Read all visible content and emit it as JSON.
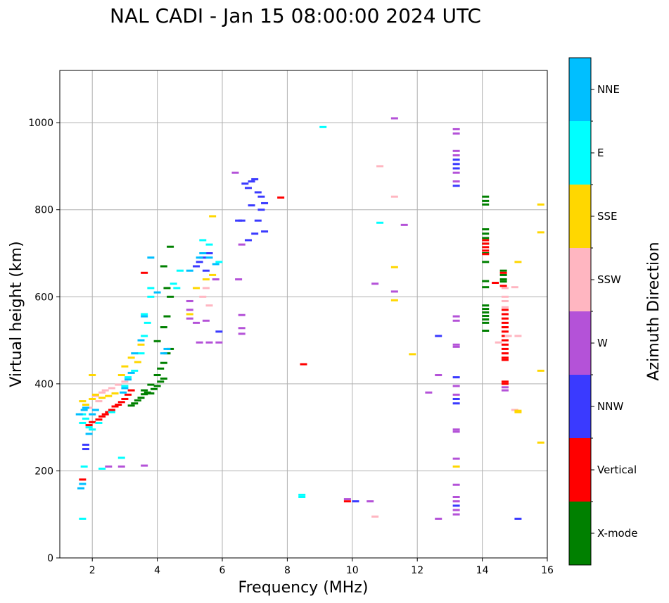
{
  "chart_data": {
    "type": "scatter",
    "title": "NAL CADI - Jan 15 08:00:00 2024 UTC",
    "xlabel": "Frequency (MHz)",
    "ylabel": "Virtual height (km)",
    "xlim": [
      1,
      16
    ],
    "ylim": [
      0,
      1120
    ],
    "xticks": [
      "2",
      "4",
      "6",
      "8",
      "10",
      "12",
      "14",
      "16"
    ],
    "yticks": [
      "0",
      "200",
      "400",
      "600",
      "800",
      "1000"
    ],
    "grid": true,
    "colorbar": {
      "label": "Azimuth Direction",
      "categories": [
        {
          "name": "X-mode",
          "color": "#008000"
        },
        {
          "name": "Vertical",
          "color": "#ff0000"
        },
        {
          "name": "NNW",
          "color": "#3a3aff"
        },
        {
          "name": "W",
          "color": "#b452d8"
        },
        {
          "name": "SSW",
          "color": "#ffb6c1"
        },
        {
          "name": "SSE",
          "color": "#ffd700"
        },
        {
          "name": "E",
          "color": "#00ffff"
        },
        {
          "name": "NNE",
          "color": "#00bfff"
        }
      ]
    },
    "series": [
      {
        "name": "X-mode",
        "points": [
          [
            14.1,
            830
          ],
          [
            14.1,
            820
          ],
          [
            14.1,
            812
          ],
          [
            14.1,
            755
          ],
          [
            14.1,
            745
          ],
          [
            14.1,
            735
          ],
          [
            14.1,
            722
          ],
          [
            14.1,
            700
          ],
          [
            14.1,
            680
          ],
          [
            14.1,
            636
          ],
          [
            14.1,
            622
          ],
          [
            14.1,
            580
          ],
          [
            14.1,
            572
          ],
          [
            14.1,
            564
          ],
          [
            14.1,
            556
          ],
          [
            14.1,
            548
          ],
          [
            14.1,
            540
          ],
          [
            14.1,
            522
          ],
          [
            14.65,
            660
          ],
          [
            14.65,
            650
          ],
          [
            14.65,
            640
          ],
          [
            14.65,
            635
          ],
          [
            3.5,
            368
          ],
          [
            3.6,
            376
          ],
          [
            3.7,
            380
          ],
          [
            3.8,
            378
          ],
          [
            3.9,
            388
          ],
          [
            4.0,
            395
          ],
          [
            4.1,
            405
          ],
          [
            4.2,
            412
          ],
          [
            3.3,
            355
          ],
          [
            3.4,
            362
          ],
          [
            3.2,
            350
          ],
          [
            3.6,
            385
          ],
          [
            3.8,
            398
          ],
          [
            4.0,
            420
          ],
          [
            4.1,
            435
          ],
          [
            4.2,
            448
          ],
          [
            4.3,
            470
          ],
          [
            4.4,
            480
          ],
          [
            4.0,
            498
          ],
          [
            4.2,
            530
          ],
          [
            4.3,
            555
          ],
          [
            4.4,
            600
          ],
          [
            4.3,
            620
          ],
          [
            4.2,
            670
          ],
          [
            4.4,
            715
          ]
        ]
      },
      {
        "name": "Vertical",
        "points": [
          [
            14.7,
            570
          ],
          [
            14.7,
            560
          ],
          [
            14.7,
            550
          ],
          [
            14.7,
            540
          ],
          [
            14.7,
            530
          ],
          [
            14.7,
            520
          ],
          [
            14.7,
            510
          ],
          [
            14.7,
            500
          ],
          [
            14.7,
            490
          ],
          [
            14.7,
            480
          ],
          [
            14.7,
            470
          ],
          [
            14.7,
            460
          ],
          [
            14.7,
            455
          ],
          [
            14.1,
            730
          ],
          [
            14.1,
            722
          ],
          [
            14.1,
            714
          ],
          [
            14.1,
            706
          ],
          [
            14.1,
            698
          ],
          [
            14.4,
            632
          ],
          [
            14.65,
            655
          ],
          [
            14.65,
            625
          ],
          [
            14.7,
            405
          ],
          [
            14.7,
            400
          ],
          [
            1.9,
            305
          ],
          [
            2.0,
            312
          ],
          [
            2.2,
            318
          ],
          [
            2.3,
            325
          ],
          [
            2.4,
            330
          ],
          [
            2.5,
            335
          ],
          [
            2.6,
            340
          ],
          [
            2.7,
            348
          ],
          [
            2.8,
            352
          ],
          [
            2.9,
            358
          ],
          [
            3.0,
            365
          ],
          [
            3.1,
            375
          ],
          [
            3.2,
            385
          ],
          [
            1.7,
            180
          ],
          [
            8.5,
            445
          ],
          [
            9.85,
            130
          ],
          [
            7.8,
            828
          ],
          [
            3.6,
            655
          ]
        ]
      },
      {
        "name": "NNW",
        "points": [
          [
            13.2,
            915
          ],
          [
            13.2,
            905
          ],
          [
            13.2,
            895
          ],
          [
            13.2,
            855
          ],
          [
            13.2,
            415
          ],
          [
            13.2,
            365
          ],
          [
            13.2,
            355
          ],
          [
            13.2,
            120
          ],
          [
            12.65,
            510
          ],
          [
            15.1,
            90
          ],
          [
            10.1,
            130
          ],
          [
            6.6,
            775
          ],
          [
            6.7,
            860
          ],
          [
            6.8,
            850
          ],
          [
            6.9,
            865
          ],
          [
            7.0,
            870
          ],
          [
            7.1,
            840
          ],
          [
            7.2,
            800
          ],
          [
            6.8,
            730
          ],
          [
            7.0,
            745
          ],
          [
            6.5,
            775
          ],
          [
            7.3,
            750
          ],
          [
            7.1,
            775
          ],
          [
            6.9,
            810
          ],
          [
            7.3,
            815
          ],
          [
            7.2,
            830
          ],
          [
            5.3,
            680
          ],
          [
            5.4,
            690
          ],
          [
            5.5,
            660
          ],
          [
            5.2,
            670
          ],
          [
            5.9,
            520
          ],
          [
            5.6,
            700
          ],
          [
            1.8,
            260
          ],
          [
            1.8,
            250
          ]
        ]
      },
      {
        "name": "W",
        "points": [
          [
            13.2,
            985
          ],
          [
            13.2,
            975
          ],
          [
            13.2,
            935
          ],
          [
            13.2,
            925
          ],
          [
            13.2,
            885
          ],
          [
            13.2,
            865
          ],
          [
            13.2,
            555
          ],
          [
            13.2,
            545
          ],
          [
            13.2,
            490
          ],
          [
            13.2,
            485
          ],
          [
            13.2,
            395
          ],
          [
            13.2,
            375
          ],
          [
            13.2,
            295
          ],
          [
            13.2,
            290
          ],
          [
            13.2,
            228
          ],
          [
            13.2,
            168
          ],
          [
            13.2,
            140
          ],
          [
            13.2,
            130
          ],
          [
            13.2,
            110
          ],
          [
            13.2,
            100
          ],
          [
            12.65,
            420
          ],
          [
            12.65,
            90
          ],
          [
            12.35,
            380
          ],
          [
            14.7,
            392
          ],
          [
            14.7,
            385
          ],
          [
            11.3,
            1010
          ],
          [
            11.3,
            612
          ],
          [
            11.6,
            765
          ],
          [
            10.7,
            630
          ],
          [
            10.55,
            130
          ],
          [
            9.85,
            135
          ],
          [
            6.4,
            885
          ],
          [
            6.6,
            720
          ],
          [
            6.5,
            640
          ],
          [
            6.6,
            558
          ],
          [
            6.6,
            528
          ],
          [
            6.6,
            515
          ],
          [
            5.0,
            590
          ],
          [
            5.0,
            570
          ],
          [
            5.0,
            550
          ],
          [
            5.2,
            540
          ],
          [
            5.5,
            545
          ],
          [
            5.3,
            495
          ],
          [
            5.6,
            495
          ],
          [
            5.9,
            495
          ],
          [
            5.8,
            640
          ],
          [
            3.6,
            212
          ],
          [
            2.9,
            210
          ],
          [
            2.5,
            210
          ]
        ]
      },
      {
        "name": "SSW",
        "points": [
          [
            14.7,
            620
          ],
          [
            14.7,
            600
          ],
          [
            14.7,
            590
          ],
          [
            14.7,
            576
          ],
          [
            14.8,
            510
          ],
          [
            14.5,
            495
          ],
          [
            15.0,
            622
          ],
          [
            15.1,
            510
          ],
          [
            10.85,
            900
          ],
          [
            11.3,
            830
          ],
          [
            10.7,
            95
          ],
          [
            15.0,
            340
          ],
          [
            2.3,
            380
          ],
          [
            2.4,
            385
          ],
          [
            2.6,
            390
          ],
          [
            2.8,
            398
          ],
          [
            3.0,
            405
          ],
          [
            1.9,
            345
          ],
          [
            2.1,
            372
          ],
          [
            2.2,
            360
          ],
          [
            5.4,
            600
          ],
          [
            5.6,
            580
          ],
          [
            5.5,
            620
          ]
        ]
      },
      {
        "name": "SSE",
        "points": [
          [
            15.8,
            812
          ],
          [
            15.8,
            748
          ],
          [
            15.8,
            430
          ],
          [
            15.8,
            265
          ],
          [
            15.1,
            680
          ],
          [
            15.1,
            338
          ],
          [
            15.1,
            335
          ],
          [
            13.2,
            210
          ],
          [
            11.3,
            668
          ],
          [
            11.3,
            592
          ],
          [
            11.85,
            468
          ],
          [
            1.7,
            360
          ],
          [
            1.8,
            352
          ],
          [
            2.0,
            365
          ],
          [
            2.1,
            375
          ],
          [
            2.3,
            368
          ],
          [
            2.5,
            372
          ],
          [
            2.7,
            378
          ],
          [
            2.9,
            420
          ],
          [
            3.0,
            440
          ],
          [
            3.2,
            460
          ],
          [
            3.4,
            450
          ],
          [
            3.5,
            490
          ],
          [
            5.0,
            560
          ],
          [
            5.2,
            620
          ],
          [
            5.7,
            650
          ],
          [
            5.7,
            785
          ],
          [
            5.5,
            640
          ],
          [
            2.0,
            420
          ]
        ]
      },
      {
        "name": "E",
        "points": [
          [
            9.1,
            990
          ],
          [
            10.85,
            770
          ],
          [
            8.45,
            145
          ],
          [
            8.45,
            140
          ],
          [
            1.7,
            330
          ],
          [
            1.8,
            320
          ],
          [
            1.7,
            310
          ],
          [
            1.9,
            300
          ],
          [
            2.0,
            295
          ],
          [
            2.2,
            310
          ],
          [
            2.6,
            335
          ],
          [
            3.0,
            395
          ],
          [
            3.1,
            415
          ],
          [
            3.3,
            430
          ],
          [
            3.5,
            470
          ],
          [
            3.6,
            510
          ],
          [
            3.7,
            540
          ],
          [
            3.8,
            600
          ],
          [
            3.8,
            620
          ],
          [
            3.6,
            560
          ],
          [
            2.9,
            230
          ],
          [
            2.3,
            205
          ],
          [
            1.7,
            90
          ],
          [
            1.75,
            210
          ],
          [
            5.4,
            730
          ],
          [
            5.6,
            720
          ],
          [
            5.9,
            680
          ],
          [
            4.6,
            620
          ],
          [
            4.7,
            660
          ],
          [
            4.5,
            630
          ]
        ]
      },
      {
        "name": "NNE",
        "points": [
          [
            1.7,
            170
          ],
          [
            1.65,
            160
          ],
          [
            1.9,
            285
          ],
          [
            1.6,
            330
          ],
          [
            1.75,
            340
          ],
          [
            1.8,
            345
          ],
          [
            2.0,
            330
          ],
          [
            2.1,
            340
          ],
          [
            3.3,
            470
          ],
          [
            3.5,
            500
          ],
          [
            3.6,
            555
          ],
          [
            3.8,
            690
          ],
          [
            4.2,
            470
          ],
          [
            4.3,
            480
          ],
          [
            4.0,
            610
          ],
          [
            5.0,
            660
          ],
          [
            5.3,
            690
          ],
          [
            5.4,
            700
          ],
          [
            5.8,
            675
          ],
          [
            5.6,
            690
          ],
          [
            3.1,
            410
          ],
          [
            3.2,
            425
          ],
          [
            2.95,
            380
          ],
          [
            3.0,
            390
          ]
        ]
      }
    ]
  }
}
